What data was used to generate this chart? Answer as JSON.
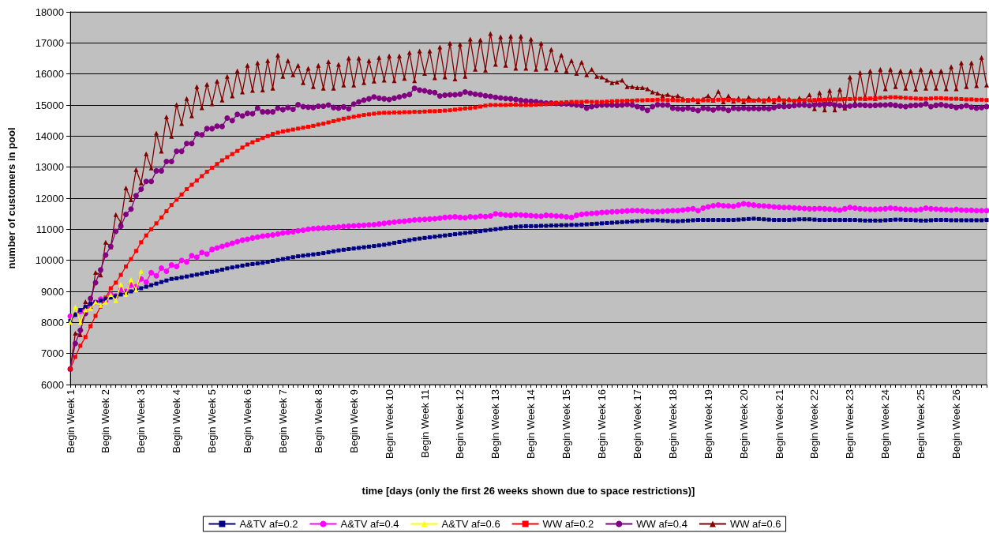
{
  "chart_data": {
    "type": "line",
    "xlabel": "time [days (only the first 26 weeks shown due to space restrictions)]",
    "ylabel": "number of customers in pool",
    "categories": [
      "Begin Week 1",
      null,
      null,
      null,
      null,
      null,
      null,
      "Begin Week 2",
      null,
      null,
      null,
      null,
      null,
      null,
      "Begin Week 3",
      null,
      null,
      null,
      null,
      null,
      null,
      "Begin Week 4",
      null,
      null,
      null,
      null,
      null,
      null,
      "Begin Week 5",
      null,
      null,
      null,
      null,
      null,
      null,
      "Begin Week 6",
      null,
      null,
      null,
      null,
      null,
      null,
      "Begin Week 7",
      null,
      null,
      null,
      null,
      null,
      null,
      "Begin Week 8",
      null,
      null,
      null,
      null,
      null,
      null,
      "Begin Week 9",
      null,
      null,
      null,
      null,
      null,
      null,
      "Begin Week 10",
      null,
      null,
      null,
      null,
      null,
      null,
      "Begin Week 11",
      null,
      null,
      null,
      null,
      null,
      null,
      "Begin Week 12",
      null,
      null,
      null,
      null,
      null,
      null,
      "Begin Week 13",
      null,
      null,
      null,
      null,
      null,
      null,
      "Begin Week 14",
      null,
      null,
      null,
      null,
      null,
      null,
      "Begin Week 15",
      null,
      null,
      null,
      null,
      null,
      null,
      "Begin Week 16",
      null,
      null,
      null,
      null,
      null,
      null,
      "Begin Week 17",
      null,
      null,
      null,
      null,
      null,
      null,
      "Begin Week 18",
      null,
      null,
      null,
      null,
      null,
      null,
      "Begin Week 19",
      null,
      null,
      null,
      null,
      null,
      null,
      "Begin Week 20",
      null,
      null,
      null,
      null,
      null,
      null,
      "Begin Week 21",
      null,
      null,
      null,
      null,
      null,
      null,
      "Begin Week 22",
      null,
      null,
      null,
      null,
      null,
      null,
      "Begin Week 23",
      null,
      null,
      null,
      null,
      null,
      null,
      "Begin Week 24",
      null,
      null,
      null,
      null,
      null,
      null,
      "Begin Week 25",
      null,
      null,
      null,
      null,
      null,
      null,
      "Begin Week 26",
      null,
      null,
      null,
      null,
      null,
      null
    ],
    "ylim": [
      6000,
      18000
    ],
    "yticks": [
      6000,
      7000,
      8000,
      9000,
      10000,
      11000,
      12000,
      13000,
      14000,
      15000,
      16000,
      17000,
      18000
    ],
    "grid": "y",
    "legend": "bottom",
    "line_style": "solid",
    "series": [
      {
        "name": "A&TV af=0.2",
        "color": "#000080",
        "marker": "square",
        "values": [
          8050,
          8250,
          8400,
          8500,
          8600,
          8650,
          8700,
          8750,
          8800,
          8850,
          8900,
          8950,
          9000,
          9050,
          9100,
          9150,
          9200,
          9250,
          9300,
          9350,
          9400,
          9420,
          9450,
          9480,
          9510,
          9540,
          9570,
          9600,
          9630,
          9660,
          9700,
          9740,
          9770,
          9800,
          9830,
          9860,
          9880,
          9900,
          9920,
          9950,
          9980,
          10010,
          10040,
          10070,
          10100,
          10130,
          10150,
          10170,
          10190,
          10210,
          10230,
          10260,
          10290,
          10320,
          10340,
          10360,
          10380,
          10400,
          10420,
          10440,
          10460,
          10480,
          10500,
          10530,
          10560,
          10590,
          10620,
          10650,
          10680,
          10700,
          10720,
          10740,
          10760,
          10780,
          10800,
          10820,
          10840,
          10860,
          10880,
          10900,
          10920,
          10940,
          10960,
          10980,
          11000,
          11020,
          11040,
          11060,
          11080,
          11090,
          11100,
          11100,
          11100,
          11110,
          11110,
          11120,
          11120,
          11130,
          11130,
          11140,
          11140,
          11150,
          11160,
          11170,
          11180,
          11190,
          11200,
          11210,
          11220,
          11230,
          11240,
          11250,
          11260,
          11270,
          11280,
          11290,
          11290,
          11280,
          11270,
          11260,
          11260,
          11270,
          11280,
          11290,
          11300,
          11300,
          11300,
          11300,
          11300,
          11300,
          11300,
          11300,
          11310,
          11320,
          11330,
          11340,
          11330,
          11320,
          11310,
          11300,
          11300,
          11300,
          11300,
          11310,
          11320,
          11320,
          11320,
          11310,
          11300,
          11300,
          11300,
          11300,
          11300,
          11300,
          11300,
          11300,
          11290,
          11280,
          11280,
          11280,
          11280,
          11290,
          11300,
          11310,
          11310,
          11300,
          11300,
          11290,
          11280,
          11280,
          11290,
          11300,
          11300,
          11300,
          11290,
          11290,
          11290,
          11290,
          11290,
          11290,
          11290,
          11300
        ]
      },
      {
        "name": "A&TV af=0.4",
        "color": "#ff00ff",
        "marker": "circle",
        "values": [
          8200,
          8250,
          8350,
          8450,
          8550,
          8650,
          8750,
          8700,
          8900,
          8850,
          9050,
          9000,
          9200,
          9150,
          9400,
          9300,
          9600,
          9500,
          9750,
          9650,
          9850,
          9800,
          10000,
          9950,
          10150,
          10100,
          10250,
          10200,
          10350,
          10400,
          10450,
          10500,
          10550,
          10600,
          10650,
          10680,
          10720,
          10750,
          10780,
          10800,
          10820,
          10850,
          10880,
          10900,
          10920,
          10950,
          10970,
          11000,
          11020,
          11030,
          11040,
          11050,
          11060,
          11070,
          11090,
          11100,
          11110,
          11120,
          11130,
          11140,
          11150,
          11170,
          11190,
          11210,
          11230,
          11250,
          11260,
          11280,
          11300,
          11310,
          11320,
          11330,
          11340,
          11360,
          11380,
          11390,
          11400,
          11380,
          11370,
          11400,
          11390,
          11420,
          11410,
          11430,
          11500,
          11480,
          11460,
          11450,
          11470,
          11460,
          11450,
          11440,
          11430,
          11420,
          11450,
          11440,
          11430,
          11420,
          11400,
          11380,
          11450,
          11480,
          11500,
          11510,
          11520,
          11540,
          11550,
          11560,
          11570,
          11580,
          11590,
          11600,
          11600,
          11590,
          11580,
          11570,
          11570,
          11580,
          11590,
          11600,
          11600,
          11620,
          11640,
          11660,
          11600,
          11680,
          11720,
          11760,
          11780,
          11760,
          11750,
          11740,
          11780,
          11820,
          11800,
          11780,
          11760,
          11750,
          11740,
          11720,
          11710,
          11700,
          11700,
          11690,
          11680,
          11670,
          11660,
          11660,
          11670,
          11660,
          11650,
          11640,
          11620,
          11660,
          11700,
          11680,
          11660,
          11650,
          11640,
          11640,
          11650,
          11660,
          11680,
          11670,
          11650,
          11640,
          11630,
          11620,
          11640,
          11680,
          11660,
          11650,
          11640,
          11630,
          11620,
          11640,
          11620,
          11610,
          11610,
          11600,
          11600,
          11600
        ]
      },
      {
        "name": "A&TV af=0.6",
        "color": "#ffff00",
        "marker": "triangle",
        "values": [
          8000,
          8500,
          8000,
          8400,
          8450,
          8650,
          8550,
          8650,
          8900,
          8700,
          9230,
          8900,
          9380,
          9050,
          9650,
          null,
          null,
          null,
          null,
          null,
          null,
          null,
          null,
          null,
          null,
          null,
          null,
          null,
          null,
          null,
          null,
          null,
          null,
          null,
          null,
          null,
          null,
          null,
          null,
          null,
          null,
          null,
          null,
          null,
          null,
          null,
          null,
          null,
          null,
          null,
          null,
          null,
          null,
          null,
          null,
          null,
          null,
          null,
          null,
          null,
          null,
          null,
          null,
          null,
          null,
          null,
          null,
          null,
          null,
          null,
          null,
          null,
          null,
          null,
          null,
          null,
          null,
          null,
          null,
          null,
          null,
          null,
          null,
          null,
          null,
          null,
          null,
          null,
          null,
          null,
          null,
          null,
          null,
          null,
          null,
          null,
          null,
          null,
          null,
          null,
          null,
          null,
          null,
          null,
          null,
          null,
          null,
          null,
          null,
          null,
          null,
          null,
          null,
          null,
          null,
          null,
          null,
          null,
          null,
          null,
          null,
          null,
          null,
          null,
          null,
          null,
          null,
          null,
          null,
          null,
          null,
          null,
          null,
          null,
          null,
          null,
          null,
          null,
          null,
          null,
          null,
          null,
          null,
          null,
          null,
          null,
          null,
          null,
          null,
          null,
          null,
          null,
          null,
          null,
          null,
          null,
          null,
          null,
          null,
          null,
          null,
          null,
          null,
          null,
          null,
          null,
          null,
          null,
          null,
          null,
          null,
          null,
          null,
          null,
          null,
          null,
          null,
          null,
          null,
          null,
          null,
          null
        ]
      },
      {
        "name": "WW af=0.2",
        "color": "#ff0000",
        "marker": "square",
        "values": [
          6500,
          6890,
          7250,
          7530,
          7880,
          8210,
          8510,
          8800,
          9100,
          9280,
          9530,
          9800,
          10040,
          10300,
          10580,
          10800,
          11000,
          11190,
          11380,
          11580,
          11780,
          11950,
          12120,
          12290,
          12430,
          12570,
          12710,
          12850,
          12980,
          13100,
          13220,
          13320,
          13420,
          13520,
          13630,
          13730,
          13800,
          13870,
          13940,
          14000,
          14070,
          14110,
          14150,
          14180,
          14210,
          14240,
          14270,
          14300,
          14330,
          14370,
          14400,
          14440,
          14480,
          14520,
          14560,
          14590,
          14620,
          14650,
          14680,
          14700,
          14720,
          14740,
          14750,
          14750,
          14760,
          14760,
          14770,
          14770,
          14780,
          14780,
          14790,
          14800,
          14800,
          14810,
          14820,
          14830,
          14850,
          14870,
          14890,
          14900,
          14920,
          14950,
          14980,
          15000,
          15000,
          15000,
          15000,
          15010,
          15010,
          15000,
          15000,
          15000,
          15010,
          15020,
          15030,
          15050,
          15070,
          15080,
          15090,
          15100,
          15100,
          15100,
          15110,
          15100,
          15100,
          15100,
          15110,
          15120,
          15130,
          15130,
          15140,
          15140,
          15150,
          15150,
          15160,
          15160,
          15170,
          15170,
          15160,
          15160,
          15150,
          15150,
          15160,
          15160,
          15150,
          15150,
          15150,
          15160,
          15170,
          15170,
          15160,
          15160,
          15150,
          15150,
          15140,
          15140,
          15150,
          15150,
          15150,
          15160,
          15160,
          15150,
          15150,
          15140,
          15140,
          15150,
          15150,
          15160,
          15170,
          15170,
          15180,
          15180,
          15180,
          15190,
          15190,
          15200,
          15200,
          15210,
          15210,
          15220,
          15230,
          15240,
          15250,
          15250,
          15240,
          15230,
          15220,
          15210,
          15200,
          15200,
          15210,
          15220,
          15220,
          15210,
          15200,
          15200,
          15190,
          15180,
          15180,
          15170,
          15170,
          15160
        ]
      },
      {
        "name": "WW af=0.4",
        "color": "#800080",
        "marker": "circle",
        "values": [
          6500,
          7320,
          7750,
          8290,
          8770,
          9280,
          9690,
          10170,
          10450,
          10930,
          11100,
          11480,
          11650,
          12080,
          12290,
          12540,
          12540,
          12880,
          12880,
          13180,
          13180,
          13510,
          13510,
          13760,
          13760,
          14070,
          14040,
          14240,
          14240,
          14320,
          14310,
          14580,
          14500,
          14700,
          14650,
          14730,
          14720,
          14900,
          14780,
          14780,
          14780,
          14900,
          14850,
          14920,
          14860,
          15010,
          14950,
          14930,
          14920,
          14960,
          14960,
          15000,
          14920,
          14900,
          14940,
          14880,
          15030,
          15100,
          15160,
          15200,
          15260,
          15220,
          15200,
          15180,
          15220,
          15260,
          15300,
          15340,
          15540,
          15480,
          15460,
          15420,
          15400,
          15290,
          15320,
          15330,
          15330,
          15350,
          15420,
          15380,
          15350,
          15330,
          15300,
          15280,
          15250,
          15230,
          15210,
          15200,
          15180,
          15150,
          15130,
          15120,
          15110,
          15080,
          15060,
          15060,
          15050,
          15040,
          15040,
          15020,
          15000,
          14980,
          14900,
          14950,
          14980,
          15000,
          15000,
          15000,
          14990,
          15000,
          15020,
          15000,
          14950,
          14900,
          14830,
          14950,
          15010,
          15000,
          15000,
          14900,
          14880,
          14870,
          14900,
          14860,
          14820,
          14900,
          14880,
          14840,
          14900,
          14880,
          14830,
          14900,
          14880,
          14900,
          14880,
          14890,
          14880,
          14900,
          14880,
          14920,
          14960,
          14950,
          14960,
          14980,
          15000,
          15000,
          14980,
          15000,
          15010,
          15020,
          15040,
          15000,
          14980,
          14950,
          14970,
          14990,
          15000,
          14990,
          14980,
          14990,
          15000,
          15000,
          15010,
          14990,
          14970,
          14950,
          14980,
          14990,
          15000,
          15040,
          14950,
          14990,
          15010,
          14980,
          14960,
          14920,
          14950,
          14980,
          14930,
          14900,
          14920,
          14950
        ]
      },
      {
        "name": "WW af=0.6",
        "color": "#800000",
        "marker": "triangle",
        "values": [
          6500,
          7650,
          7600,
          8670,
          8520,
          9610,
          9530,
          10580,
          10430,
          11470,
          11220,
          12330,
          11950,
          12920,
          12490,
          13430,
          12970,
          14100,
          13510,
          14620,
          13990,
          15010,
          14400,
          15210,
          14650,
          15590,
          14910,
          15670,
          15040,
          15770,
          15160,
          15920,
          15290,
          16100,
          15420,
          16280,
          15470,
          16360,
          15480,
          16430,
          15540,
          16610,
          15920,
          16430,
          15970,
          16280,
          15720,
          16180,
          15590,
          16280,
          15540,
          16400,
          15540,
          16310,
          15640,
          16510,
          15640,
          16510,
          15720,
          16430,
          15770,
          16530,
          15800,
          16580,
          15780,
          16580,
          15860,
          16690,
          15780,
          16740,
          16020,
          16740,
          15880,
          16870,
          15900,
          16990,
          15840,
          16960,
          15920,
          17120,
          16150,
          17100,
          16120,
          17300,
          16310,
          17200,
          16280,
          17220,
          16180,
          17220,
          16180,
          17120,
          16150,
          16990,
          16180,
          16790,
          16130,
          16610,
          16100,
          16430,
          16020,
          16380,
          15970,
          16150,
          15920,
          15900,
          15800,
          15720,
          15740,
          15800,
          15590,
          15590,
          15560,
          15560,
          15520,
          15420,
          15380,
          15300,
          15340,
          15250,
          15300,
          15210,
          15150,
          15200,
          15100,
          15200,
          15300,
          15150,
          15440,
          15100,
          15300,
          15120,
          15220,
          15100,
          15250,
          15150,
          15200,
          15120,
          15220,
          15100,
          15250,
          15100,
          15200,
          15080,
          15230,
          15150,
          15330,
          14880,
          15400,
          14840,
          15470,
          14840,
          15500,
          14900,
          15900,
          15080,
          16050,
          15210,
          16100,
          15210,
          16150,
          15520,
          16150,
          15590,
          16100,
          15540,
          16100,
          15510,
          16150,
          15540,
          16100,
          15540,
          16100,
          15520,
          16230,
          15520,
          16360,
          15590,
          16360,
          15620,
          16530,
          15640
        ]
      }
    ]
  }
}
